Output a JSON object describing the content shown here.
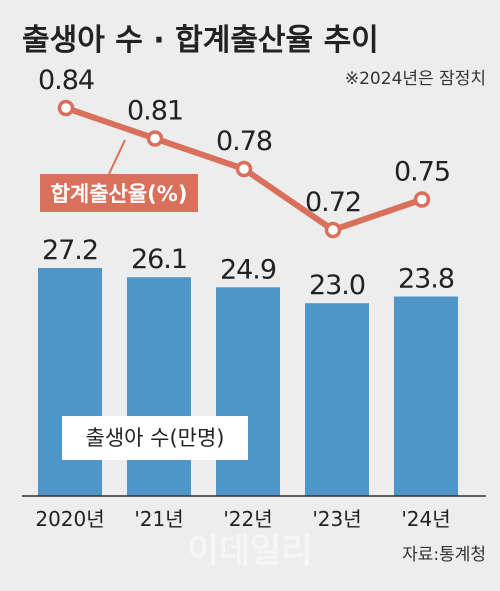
{
  "title": "출생아 수 · 합계출산율 추이",
  "note": "※2024년은 잠정치",
  "source": "자료:통계청",
  "watermark": "이데일리",
  "colors": {
    "background": "#ededed",
    "bar": "#4f96c8",
    "line": "#d9705b",
    "axis": "#333333"
  },
  "chart_data": {
    "type": "bar",
    "categories": [
      "2020년",
      "'21년",
      "'22년",
      "'23년",
      "'24년"
    ],
    "series": [
      {
        "name": "출생아 수(만명)",
        "type": "bar",
        "values": [
          27.2,
          26.1,
          24.9,
          23.0,
          23.8
        ],
        "labels": [
          "27.2",
          "26.1",
          "24.9",
          "23.0",
          "23.8"
        ]
      },
      {
        "name": "합계출산율(%)",
        "type": "line",
        "values": [
          0.84,
          0.81,
          0.78,
          0.72,
          0.75
        ],
        "labels": [
          "0.84",
          "0.81",
          "0.78",
          "0.72",
          "0.75"
        ]
      }
    ],
    "bar_label": "출생아 수(만명)",
    "line_label": "합계출산율(%)"
  }
}
